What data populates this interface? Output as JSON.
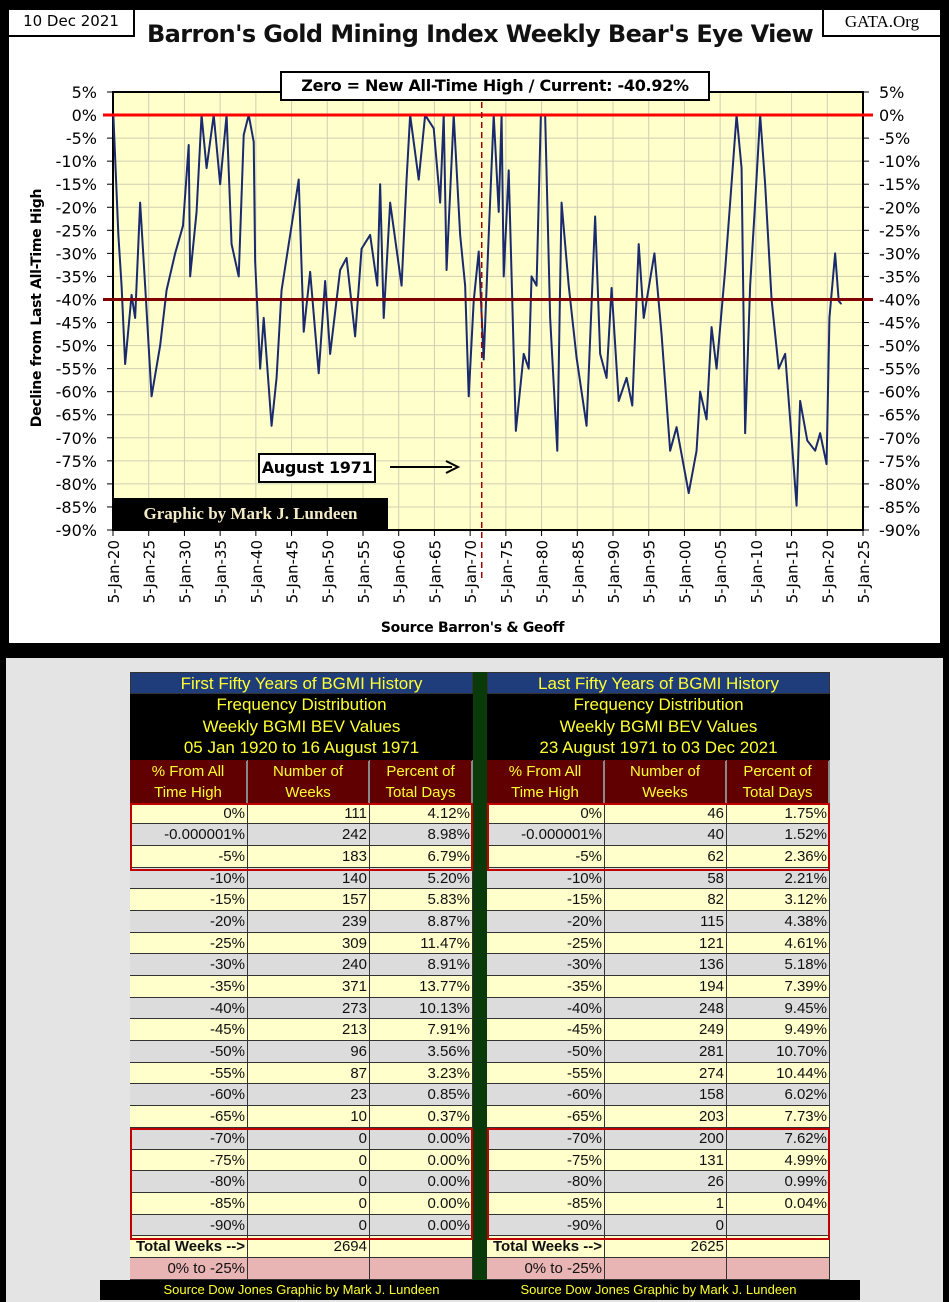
{
  "header": {
    "date": "10 Dec 2021",
    "site": "GATA.Org"
  },
  "chart_data": {
    "type": "line",
    "title": "Barron's Gold Mining Index Weekly Bear's Eye View",
    "annotation_top": "Zero = New All-Time High / Current: -40.92%",
    "annotation_event": "August 1971",
    "event_year": 1971.62,
    "credit": "Graphic by Mark J. Lundeen",
    "ylabel": "Decline from Last All-Time High",
    "xlabel": "Source Barron's & Geoff",
    "ylim": [
      -90,
      5
    ],
    "xlim": [
      1920,
      2025
    ],
    "yticks": [
      "5%",
      "0%",
      "-5%",
      "-10%",
      "-15%",
      "-20%",
      "-25%",
      "-30%",
      "-35%",
      "-40%",
      "-45%",
      "-50%",
      "-55%",
      "-60%",
      "-65%",
      "-70%",
      "-75%",
      "-80%",
      "-85%",
      "-90%"
    ],
    "xticks": [
      "5-Jan-20",
      "5-Jan-25",
      "5-Jan-30",
      "5-Jan-35",
      "5-Jan-40",
      "5-Jan-45",
      "5-Jan-50",
      "5-Jan-55",
      "5-Jan-60",
      "5-Jan-65",
      "5-Jan-70",
      "5-Jan-75",
      "5-Jan-80",
      "5-Jan-85",
      "5-Jan-90",
      "5-Jan-95",
      "5-Jan-00",
      "5-Jan-05",
      "5-Jan-10",
      "5-Jan-15",
      "5-Jan-20",
      "5-Jan-25"
    ],
    "reference_lines": [
      {
        "y": 0,
        "color": "#ff0000"
      },
      {
        "y": -40,
        "color": "#800000"
      }
    ],
    "grid": true,
    "colors": {
      "series": "#1a2a6c",
      "plot_bg": "#ffffcc",
      "event_line": "#a00000"
    },
    "series": [
      {
        "x": [
          1920.05,
          1920.75,
          1921.2,
          1921.7,
          1922.6,
          1923.1,
          1923.8,
          1924.5,
          1925.4,
          1926.6,
          1927.5,
          1928.7,
          1929.8,
          1930.6,
          1930.8,
          1931.7,
          1932.4,
          1933.1,
          1934.1,
          1935,
          1935.9,
          1936.6,
          1937.6,
          1938.3,
          1939,
          1939.7,
          1939.9,
          1940.6,
          1941.1,
          1942.2,
          1942.9,
          1943.6,
          1944.6,
          1946,
          1946.7,
          1947.6,
          1948.8,
          1949.7,
          1950.4,
          1951.8,
          1952.7,
          1953.9,
          1954.8,
          1956,
          1957,
          1957.4,
          1957.9,
          1958.8,
          1960.4,
          1961.1,
          1961.6,
          1962.8,
          1963.7,
          1964.9,
          1965.8,
          1966.3,
          1966.7,
          1967.7,
          1968.6,
          1969.3,
          1969.8,
          1970.5,
          1971.2,
          1971.9,
          1972.6,
          1973.3,
          1974,
          1974.4,
          1974.7,
          1975.4,
          1976.1,
          1976.4,
          1977.5,
          1978.2,
          1978.6,
          1979.3,
          1979.9,
          1980.5,
          1981.2,
          1982.2,
          1982.8,
          1983.8,
          1984.9,
          1986.3,
          1987.5,
          1988.2,
          1989.1,
          1989.8,
          1990.8,
          1991.9,
          1992.7,
          1993.6,
          1994.3,
          1995.8,
          1996.8,
          1998,
          1998.9,
          2000.6,
          2001.7,
          2002.2,
          2003.1,
          2003.8,
          2004.5,
          2005.7,
          2006.4,
          2007.3,
          2008,
          2008.5,
          2009.2,
          2009.9,
          2010.6,
          2011.3,
          2012.2,
          2013.2,
          2014.1,
          2014.8,
          2015.7,
          2016.2,
          2017.2,
          2018.3,
          2019,
          2019.9,
          2020.3,
          2021.1,
          2021.6,
          2021.93
        ],
        "y": [
          0,
          -26,
          -37,
          -54,
          -39,
          -44,
          -19,
          -37,
          -61,
          -50,
          -38,
          -30,
          -24,
          -6.5,
          -35,
          -21,
          0,
          -11.5,
          0,
          -15,
          0,
          -28,
          -35,
          -4.3,
          0,
          -5.8,
          -31.7,
          -55,
          -44,
          -67.4,
          -57,
          -38,
          -28,
          -14,
          -47,
          -34,
          -56,
          -36,
          -51.8,
          -33.6,
          -31,
          -48,
          -29,
          -26,
          -37,
          -15,
          -44,
          -19,
          -37,
          -14,
          0,
          -14,
          0,
          -2.9,
          -19,
          0,
          -33.6,
          0,
          -26,
          -37,
          -61,
          -40.3,
          -29.6,
          -53,
          -26,
          0,
          -21,
          0,
          -35,
          -12,
          -51.8,
          -68.5,
          -51.8,
          -55,
          -35,
          -37,
          0,
          0,
          -44,
          -72.8,
          -19,
          -37,
          -52.6,
          -67.4,
          -22,
          -51.8,
          -57,
          -37.5,
          -62,
          -57,
          -63,
          -28,
          -44,
          -30,
          -47.6,
          -72.8,
          -67.7,
          -82,
          -72.8,
          -60,
          -66,
          -46,
          -55,
          -33.6,
          -19,
          0,
          -11.5,
          -69,
          -37,
          -19,
          0,
          -15,
          -40,
          -55,
          -51.8,
          -66,
          -84.7,
          -62,
          -70.6,
          -72.8,
          -69,
          -75.7,
          -44,
          -30,
          -40.3,
          -40.92
        ]
      }
    ]
  },
  "tables": [
    {
      "title": "First Fifty Years of BGMI History",
      "subtitle": [
        "Frequency Distribution",
        "Weekly BGMI BEV Values",
        "05 Jan 1920 to 16 August 1971"
      ],
      "columns": [
        [
          "% From All",
          "Time High"
        ],
        [
          "Number of",
          "Weeks"
        ],
        [
          "Percent of",
          "Total Days"
        ]
      ],
      "rows": [
        [
          "0%",
          "111",
          "4.12%"
        ],
        [
          "-0.000001%",
          "242",
          "8.98%"
        ],
        [
          "-5%",
          "183",
          "6.79%"
        ],
        [
          "-10%",
          "140",
          "5.20%"
        ],
        [
          "-15%",
          "157",
          "5.83%"
        ],
        [
          "-20%",
          "239",
          "8.87%"
        ],
        [
          "-25%",
          "309",
          "11.47%"
        ],
        [
          "-30%",
          "240",
          "8.91%"
        ],
        [
          "-35%",
          "371",
          "13.77%"
        ],
        [
          "-40%",
          "273",
          "10.13%"
        ],
        [
          "-45%",
          "213",
          "7.91%"
        ],
        [
          "-50%",
          "96",
          "3.56%"
        ],
        [
          "-55%",
          "87",
          "3.23%"
        ],
        [
          "-60%",
          "23",
          "0.85%"
        ],
        [
          "-65%",
          "10",
          "0.37%"
        ],
        [
          "-70%",
          "0",
          "0.00%"
        ],
        [
          "-75%",
          "0",
          "0.00%"
        ],
        [
          "-80%",
          "0",
          "0.00%"
        ],
        [
          "-85%",
          "0",
          "0.00%"
        ],
        [
          "-90%",
          "0",
          "0.00%"
        ]
      ],
      "total_label": "Total Weeks -->",
      "total": "2694",
      "range_label": "0% to -25%",
      "footer": "Source Dow Jones   Graphic by Mark J. Lundeen"
    },
    {
      "title": "Last Fifty Years of BGMI History",
      "subtitle": [
        "Frequency Distribution",
        "Weekly BGMI BEV Values",
        "23 August 1971 to 03 Dec 2021"
      ],
      "columns": [
        [
          "% From All",
          "Time High"
        ],
        [
          "Number of",
          "Weeks"
        ],
        [
          "Percent of",
          "Total Days"
        ]
      ],
      "rows": [
        [
          "0%",
          "46",
          "1.75%"
        ],
        [
          "-0.000001%",
          "40",
          "1.52%"
        ],
        [
          "-5%",
          "62",
          "2.36%"
        ],
        [
          "-10%",
          "58",
          "2.21%"
        ],
        [
          "-15%",
          "82",
          "3.12%"
        ],
        [
          "-20%",
          "115",
          "4.38%"
        ],
        [
          "-25%",
          "121",
          "4.61%"
        ],
        [
          "-30%",
          "136",
          "5.18%"
        ],
        [
          "-35%",
          "194",
          "7.39%"
        ],
        [
          "-40%",
          "248",
          "9.45%"
        ],
        [
          "-45%",
          "249",
          "9.49%"
        ],
        [
          "-50%",
          "281",
          "10.70%"
        ],
        [
          "-55%",
          "274",
          "10.44%"
        ],
        [
          "-60%",
          "158",
          "6.02%"
        ],
        [
          "-65%",
          "203",
          "7.73%"
        ],
        [
          "-70%",
          "200",
          "7.62%"
        ],
        [
          "-75%",
          "131",
          "4.99%"
        ],
        [
          "-80%",
          "26",
          "0.99%"
        ],
        [
          "-85%",
          "1",
          "0.04%"
        ],
        [
          "-90%",
          "0",
          ""
        ]
      ],
      "total_label": "Total Weeks -->",
      "total": "2625",
      "range_label": "0% to -25%",
      "footer": "Source Dow Jones   Graphic by Mark J. Lundeen"
    }
  ]
}
